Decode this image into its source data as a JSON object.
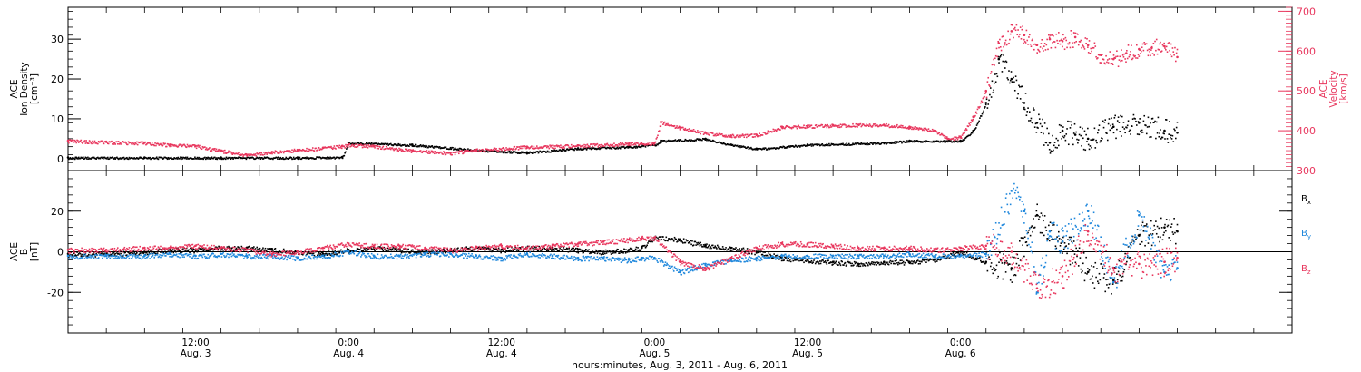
{
  "chart_data": [
    {
      "type": "scatter",
      "panel": "top",
      "title": "",
      "ylabel_lines": [
        "ACE",
        "Ion Density",
        "[cm⁻³]"
      ],
      "ylim": [
        -3,
        38
      ],
      "y_ticks": [
        0,
        10,
        20,
        30
      ],
      "y2label_lines": [
        "ACE",
        "Velocity",
        "[km/s]"
      ],
      "y2lim": [
        300,
        710
      ],
      "y2_ticks": [
        300,
        400,
        500,
        600,
        700
      ],
      "series": [
        {
          "color": "#000000",
          "axis": "left",
          "x": [
            0,
            6,
            12,
            18,
            21.5,
            22,
            27,
            32,
            36,
            40,
            44,
            46,
            46.5,
            50,
            52,
            54,
            58,
            64,
            66,
            70,
            71,
            72,
            73,
            74,
            75,
            76,
            77,
            78,
            79,
            80,
            82,
            84,
            86,
            87
          ],
          "values": [
            0.3,
            0.3,
            0.3,
            0.3,
            0.4,
            4,
            3.5,
            2.2,
            1.6,
            2.6,
            3.0,
            3.5,
            4.5,
            5.0,
            3.5,
            2.5,
            3.5,
            4.0,
            4.5,
            4.5,
            7,
            14,
            25,
            20,
            14,
            9,
            4,
            7,
            6,
            5,
            8,
            9,
            7,
            6.5
          ]
        },
        {
          "color": "#e8365d",
          "axis": "right",
          "x": [
            0,
            3,
            6,
            8,
            10,
            12,
            14,
            16,
            18,
            20,
            21.5,
            22,
            24,
            27,
            30,
            32,
            36,
            40,
            44,
            46,
            46.5,
            48,
            50,
            52,
            54,
            56,
            58,
            60,
            62,
            64,
            66,
            68,
            69,
            70,
            71,
            72,
            73,
            74,
            75,
            76,
            77,
            78,
            79,
            80,
            81,
            82,
            83,
            84,
            85,
            86,
            87
          ],
          "values": [
            375,
            372,
            370,
            365,
            362,
            350,
            340,
            347,
            352,
            357,
            362,
            365,
            362,
            350,
            345,
            352,
            360,
            363,
            368,
            370,
            422,
            408,
            395,
            388,
            390,
            410,
            412,
            414,
            415,
            415,
            410,
            400,
            380,
            385,
            435,
            500,
            620,
            650,
            640,
            615,
            630,
            625,
            635,
            615,
            590,
            580,
            595,
            605,
            608,
            612,
            585
          ]
        }
      ]
    },
    {
      "type": "scatter",
      "panel": "bottom",
      "title": "",
      "ylabel_lines": [
        "ACE",
        "B",
        "[nT]"
      ],
      "ylim": [
        -40,
        40
      ],
      "y_ticks": [
        -20,
        0,
        20
      ],
      "xlabel": "hours:minutes, Aug.  3, 2011 - Aug.  6, 2011",
      "xlim": [
        0,
        96
      ],
      "x_ticks": [
        {
          "x": 10,
          "line1": "12:00",
          "line2": "Aug. 3"
        },
        {
          "x": 22,
          "line1": "0:00",
          "line2": "Aug. 4"
        },
        {
          "x": 34,
          "line1": "12:00",
          "line2": "Aug. 4"
        },
        {
          "x": 46,
          "line1": "0:00",
          "line2": "Aug. 5"
        },
        {
          "x": 58,
          "line1": "12:00",
          "line2": "Aug. 5"
        },
        {
          "x": 70,
          "line1": "0:00",
          "line2": "Aug. 6"
        }
      ],
      "legend": [
        "B",
        "B",
        "B"
      ],
      "legend_subs": [
        "x",
        "y",
        "z"
      ],
      "series": [
        {
          "color": "#000000",
          "x": [
            0,
            3,
            6,
            8,
            10,
            12,
            14,
            16,
            18,
            20,
            22,
            24,
            26,
            28,
            30,
            32,
            34,
            36,
            38,
            40,
            42,
            44,
            45,
            46,
            48,
            50,
            52,
            54,
            56,
            58,
            60,
            62,
            64,
            66,
            68,
            70,
            72,
            74,
            76,
            78,
            80,
            82,
            84,
            86,
            87
          ],
          "values": [
            -1,
            -1,
            0,
            1,
            1,
            2,
            2,
            1,
            0,
            -1,
            1,
            2,
            1,
            0,
            1,
            2,
            1,
            2,
            2,
            1,
            0,
            1,
            2,
            7,
            6,
            3,
            2,
            0,
            -3,
            -4,
            -5,
            -6,
            -5,
            -5,
            -4,
            0,
            -5,
            -8,
            18,
            5,
            -10,
            -14,
            8,
            12,
            10
          ]
        },
        {
          "color": "#1e87dc",
          "x": [
            0,
            3,
            6,
            8,
            10,
            12,
            14,
            16,
            18,
            20,
            22,
            24,
            26,
            28,
            30,
            32,
            34,
            36,
            38,
            40,
            42,
            44,
            45,
            46,
            48,
            50,
            52,
            54,
            56,
            58,
            60,
            62,
            64,
            66,
            68,
            70,
            72,
            74,
            75,
            76,
            77,
            78,
            80,
            82,
            84,
            86,
            87
          ],
          "values": [
            -2,
            -2,
            -2,
            -1,
            -2,
            -1,
            -2,
            -2,
            -3,
            -2,
            0,
            -2,
            -2,
            -1,
            -1,
            -2,
            -3,
            -1,
            -2,
            -3,
            -3,
            -4,
            -3,
            -3,
            -10,
            -6,
            -4,
            -3,
            -2,
            -2,
            -2,
            -2,
            -2,
            -1,
            -2,
            -2,
            -1,
            30,
            20,
            -20,
            10,
            5,
            20,
            -15,
            18,
            -10,
            -8
          ]
        },
        {
          "color": "#e8365d",
          "x": [
            0,
            3,
            6,
            8,
            10,
            12,
            14,
            16,
            18,
            20,
            22,
            24,
            26,
            28,
            30,
            32,
            34,
            36,
            38,
            40,
            42,
            44,
            45,
            46,
            48,
            50,
            52,
            54,
            56,
            58,
            60,
            62,
            64,
            66,
            68,
            70,
            72,
            74,
            76,
            78,
            80,
            82,
            84,
            86,
            87
          ],
          "values": [
            1,
            1,
            2,
            2,
            3,
            2,
            1,
            -1,
            0,
            2,
            4,
            3,
            3,
            2,
            1,
            2,
            3,
            2,
            3,
            4,
            5,
            6,
            7,
            7,
            -5,
            -8,
            -3,
            2,
            4,
            4,
            3,
            2,
            2,
            2,
            1,
            2,
            3,
            0,
            -18,
            -12,
            10,
            -8,
            -6,
            -5,
            -3
          ]
        }
      ]
    }
  ]
}
